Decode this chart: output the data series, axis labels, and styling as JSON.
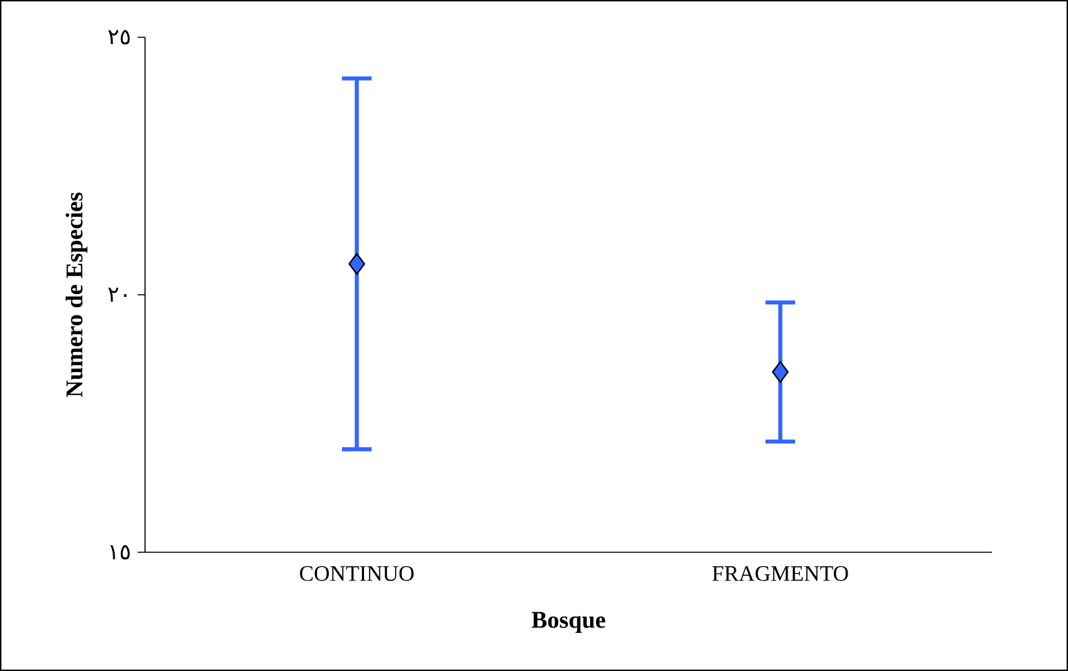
{
  "chart_data": {
    "type": "scatter",
    "xlabel": "Bosque",
    "ylabel": "Numero de Especies",
    "categories": [
      "CONTINUO",
      "FRAGMENTO"
    ],
    "series": [
      {
        "color": "#3366ff",
        "values": [
          20.6,
          18.5
        ],
        "errors": [
          3.6,
          1.35
        ]
      }
    ],
    "marker": "diamond",
    "grid": false,
    "ylim": [
      15,
      25
    ],
    "yticks": [
      {
        "value": 15,
        "label": "١٥"
      },
      {
        "value": 20,
        "label": "٢٠"
      },
      {
        "value": 25,
        "label": "٢٥"
      }
    ]
  }
}
